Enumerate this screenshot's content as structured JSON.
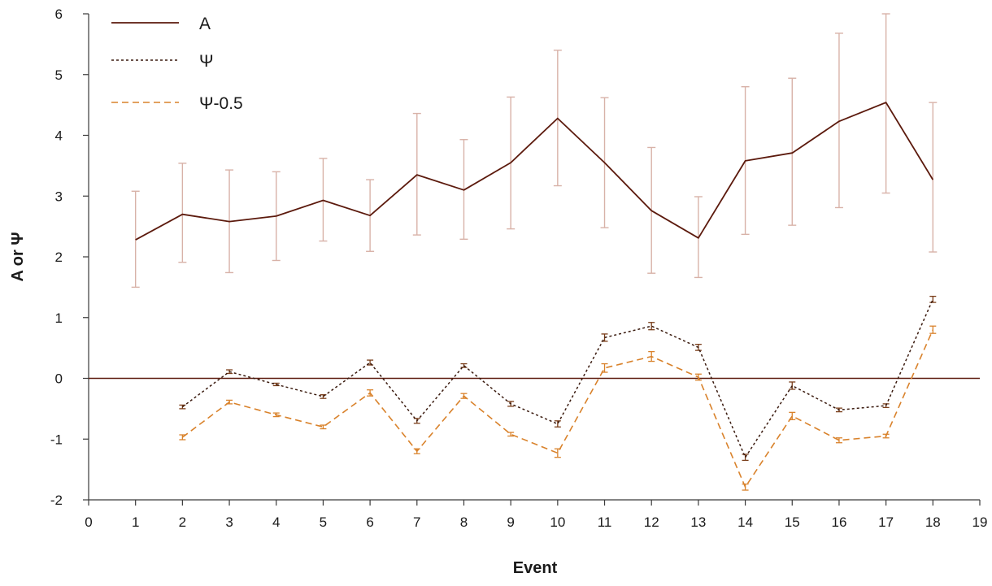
{
  "chart_data": {
    "type": "line",
    "xlabel": "Event",
    "ylabel": "A or Ψ",
    "xlim": [
      0,
      19
    ],
    "ylim": [
      -2,
      6
    ],
    "x_ticks": [
      0,
      1,
      2,
      3,
      4,
      5,
      6,
      7,
      8,
      9,
      10,
      11,
      12,
      13,
      14,
      15,
      16,
      17,
      18,
      19
    ],
    "y_ticks": [
      -2,
      -1,
      0,
      1,
      2,
      3,
      4,
      5,
      6
    ],
    "grid": false,
    "reference_line": {
      "y": 0
    },
    "legend": {
      "position": "top-left"
    },
    "series": [
      {
        "name": "A",
        "color": "#5c1a0d",
        "line_style": "solid",
        "error_bar_color": "#d8b2a8",
        "points": [
          {
            "x": 1,
            "y": 2.28,
            "lo": 1.5,
            "hi": 3.08
          },
          {
            "x": 2,
            "y": 2.7,
            "lo": 1.91,
            "hi": 3.54
          },
          {
            "x": 3,
            "y": 2.58,
            "lo": 1.74,
            "hi": 3.43
          },
          {
            "x": 4,
            "y": 2.67,
            "lo": 1.94,
            "hi": 3.4
          },
          {
            "x": 5,
            "y": 2.93,
            "lo": 2.26,
            "hi": 3.62
          },
          {
            "x": 6,
            "y": 2.68,
            "lo": 2.09,
            "hi": 3.27
          },
          {
            "x": 7,
            "y": 3.35,
            "lo": 2.36,
            "hi": 4.36
          },
          {
            "x": 8,
            "y": 3.1,
            "lo": 2.29,
            "hi": 3.93
          },
          {
            "x": 9,
            "y": 3.55,
            "lo": 2.46,
            "hi": 4.63
          },
          {
            "x": 10,
            "y": 4.28,
            "lo": 3.17,
            "hi": 5.4
          },
          {
            "x": 11,
            "y": 3.55,
            "lo": 2.48,
            "hi": 4.62
          },
          {
            "x": 12,
            "y": 2.76,
            "lo": 1.73,
            "hi": 3.8
          },
          {
            "x": 13,
            "y": 2.31,
            "lo": 1.66,
            "hi": 2.99
          },
          {
            "x": 14,
            "y": 3.58,
            "lo": 2.37,
            "hi": 4.8
          },
          {
            "x": 15,
            "y": 3.71,
            "lo": 2.52,
            "hi": 4.94
          },
          {
            "x": 16,
            "y": 4.23,
            "lo": 2.81,
            "hi": 5.68
          },
          {
            "x": 17,
            "y": 4.54,
            "lo": 3.05,
            "hi": 6.0
          },
          {
            "x": 18,
            "y": 3.27,
            "lo": 2.08,
            "hi": 4.54
          }
        ]
      },
      {
        "name": "Ψ",
        "color": "#3a1a0e",
        "line_style": "dotted",
        "error_bar_color": "#7a3e1a",
        "points": [
          {
            "x": 2,
            "y": -0.47,
            "lo": -0.5,
            "hi": -0.44
          },
          {
            "x": 3,
            "y": 0.11,
            "lo": 0.08,
            "hi": 0.14
          },
          {
            "x": 4,
            "y": -0.1,
            "lo": -0.12,
            "hi": -0.08
          },
          {
            "x": 5,
            "y": -0.3,
            "lo": -0.33,
            "hi": -0.27
          },
          {
            "x": 6,
            "y": 0.26,
            "lo": 0.22,
            "hi": 0.3
          },
          {
            "x": 7,
            "y": -0.7,
            "lo": -0.74,
            "hi": -0.66
          },
          {
            "x": 8,
            "y": 0.21,
            "lo": 0.18,
            "hi": 0.24
          },
          {
            "x": 9,
            "y": -0.42,
            "lo": -0.46,
            "hi": -0.38
          },
          {
            "x": 10,
            "y": -0.75,
            "lo": -0.8,
            "hi": -0.7
          },
          {
            "x": 11,
            "y": 0.67,
            "lo": 0.61,
            "hi": 0.73
          },
          {
            "x": 12,
            "y": 0.86,
            "lo": 0.8,
            "hi": 0.92
          },
          {
            "x": 13,
            "y": 0.51,
            "lo": 0.46,
            "hi": 0.56
          },
          {
            "x": 14,
            "y": -1.3,
            "lo": -1.35,
            "hi": -1.25
          },
          {
            "x": 15,
            "y": -0.12,
            "lo": -0.18,
            "hi": -0.06
          },
          {
            "x": 16,
            "y": -0.52,
            "lo": -0.55,
            "hi": -0.49
          },
          {
            "x": 17,
            "y": -0.45,
            "lo": -0.48,
            "hi": -0.42
          },
          {
            "x": 18,
            "y": 1.3,
            "lo": 1.25,
            "hi": 1.35
          }
        ]
      },
      {
        "name": "Ψ-0.5",
        "color": "#d9822b",
        "line_style": "dashed",
        "error_bar_color": "#d9822b",
        "points": [
          {
            "x": 2,
            "y": -0.97,
            "lo": -1.01,
            "hi": -0.93
          },
          {
            "x": 3,
            "y": -0.39,
            "lo": -0.42,
            "hi": -0.36
          },
          {
            "x": 4,
            "y": -0.6,
            "lo": -0.63,
            "hi": -0.57
          },
          {
            "x": 5,
            "y": -0.8,
            "lo": -0.83,
            "hi": -0.77
          },
          {
            "x": 6,
            "y": -0.24,
            "lo": -0.29,
            "hi": -0.19
          },
          {
            "x": 7,
            "y": -1.2,
            "lo": -1.24,
            "hi": -1.16
          },
          {
            "x": 8,
            "y": -0.29,
            "lo": -0.33,
            "hi": -0.25
          },
          {
            "x": 9,
            "y": -0.92,
            "lo": -0.95,
            "hi": -0.89
          },
          {
            "x": 10,
            "y": -1.23,
            "lo": -1.3,
            "hi": -1.16
          },
          {
            "x": 11,
            "y": 0.17,
            "lo": 0.1,
            "hi": 0.24
          },
          {
            "x": 12,
            "y": 0.36,
            "lo": 0.28,
            "hi": 0.44
          },
          {
            "x": 13,
            "y": 0.02,
            "lo": -0.03,
            "hi": 0.07
          },
          {
            "x": 14,
            "y": -1.79,
            "lo": -1.84,
            "hi": -1.74
          },
          {
            "x": 15,
            "y": -0.62,
            "lo": -0.68,
            "hi": -0.56
          },
          {
            "x": 16,
            "y": -1.02,
            "lo": -1.06,
            "hi": -0.98
          },
          {
            "x": 17,
            "y": -0.95,
            "lo": -0.98,
            "hi": -0.92
          },
          {
            "x": 18,
            "y": 0.8,
            "lo": 0.74,
            "hi": 0.86
          }
        ]
      }
    ]
  }
}
